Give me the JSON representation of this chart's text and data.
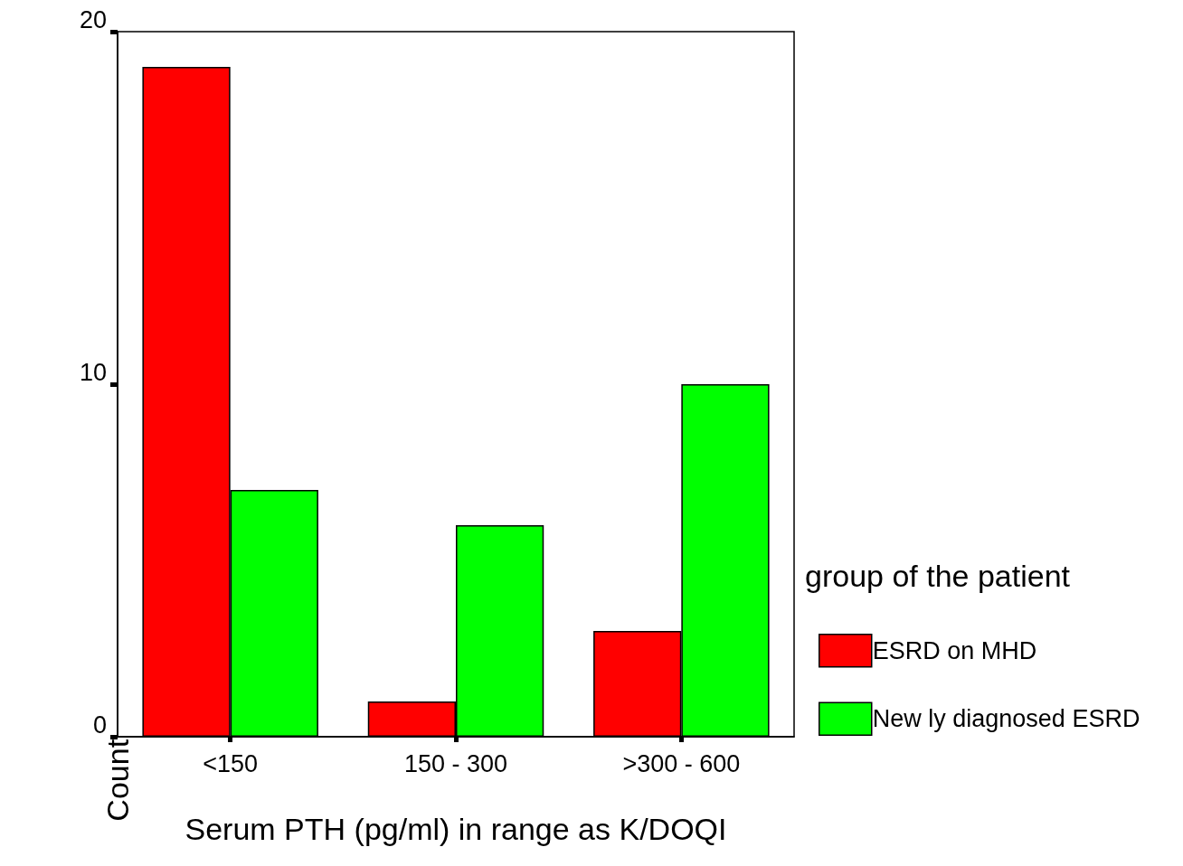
{
  "chart_data": {
    "type": "bar",
    "xlabel": "Serum PTH (pg/ml) in range as K/DOQI",
    "ylabel": "Count",
    "legend_title": "group of the patient",
    "categories": [
      "<150",
      "150 - 300",
      ">300 - 600"
    ],
    "series": [
      {
        "name": "ESRD on MHD",
        "color": "#ff0000",
        "values": [
          19,
          1,
          3
        ]
      },
      {
        "name": "New ly diagnosed ESRD",
        "color": "#00ff00",
        "values": [
          7,
          6,
          10
        ]
      }
    ],
    "ylim": [
      0,
      20
    ],
    "yticks": [
      0,
      10,
      20
    ],
    "grid": false,
    "legend": "right"
  }
}
